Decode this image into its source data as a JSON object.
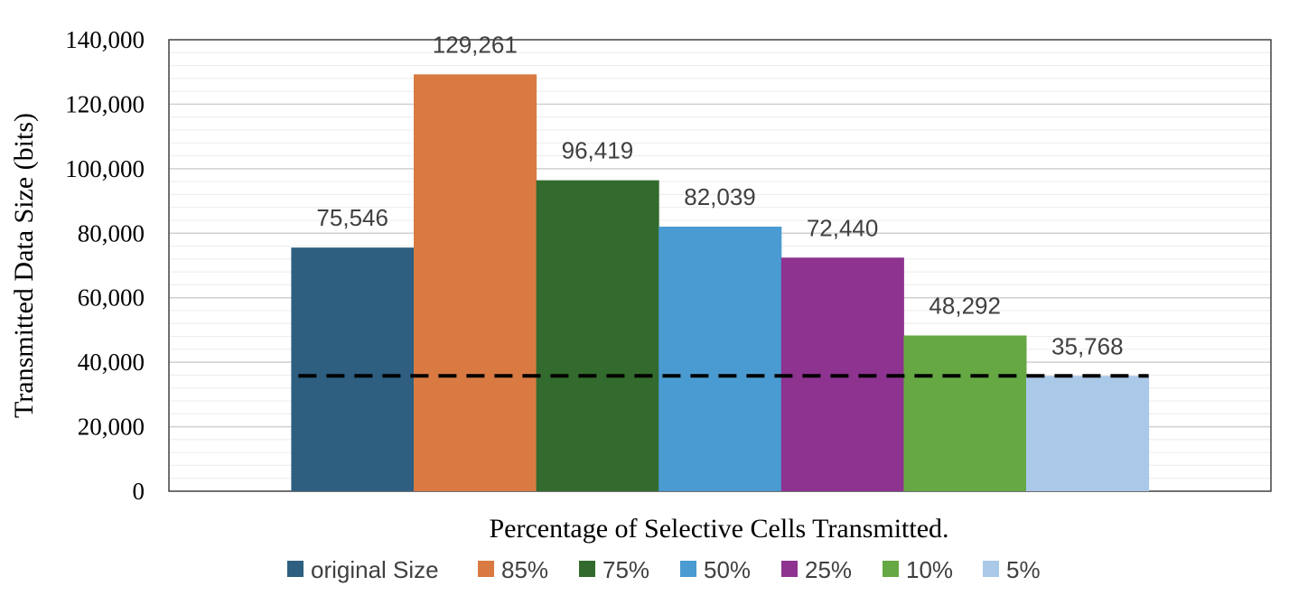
{
  "chart_data": {
    "type": "bar",
    "title": "",
    "xlabel": "Percentage of Selective Cells Transmitted.",
    "ylabel": "Transmitted Data Size (bits)",
    "ylim": [
      0,
      140000
    ],
    "yticks": [
      0,
      20000,
      40000,
      60000,
      80000,
      100000,
      120000,
      140000
    ],
    "ytick_labels": [
      "0",
      "20,000",
      "40,000",
      "60,000",
      "80,000",
      "100,000",
      "120,000",
      "140,000"
    ],
    "grid": true,
    "legend_position": "bottom",
    "series": [
      {
        "name": "original Size",
        "value": 75546,
        "label": "75,546",
        "color": "#2e5f80"
      },
      {
        "name": "85%",
        "value": 129261,
        "label": "129,261",
        "color": "#d97a42"
      },
      {
        "name": "75%",
        "value": 96419,
        "label": "96,419",
        "color": "#336b2e"
      },
      {
        "name": "50%",
        "value": 82039,
        "label": "82,039",
        "color": "#4a9bd1"
      },
      {
        "name": "25%",
        "value": 72440,
        "label": "72,440",
        "color": "#8e3390"
      },
      {
        "name": "10%",
        "value": 48292,
        "label": "48,292",
        "color": "#66a843"
      },
      {
        "name": "5%",
        "value": 35768,
        "label": "35,768",
        "color": "#aac8e8"
      }
    ],
    "reference_line": {
      "value": 35768,
      "style": "dashed",
      "color": "#000000"
    }
  }
}
